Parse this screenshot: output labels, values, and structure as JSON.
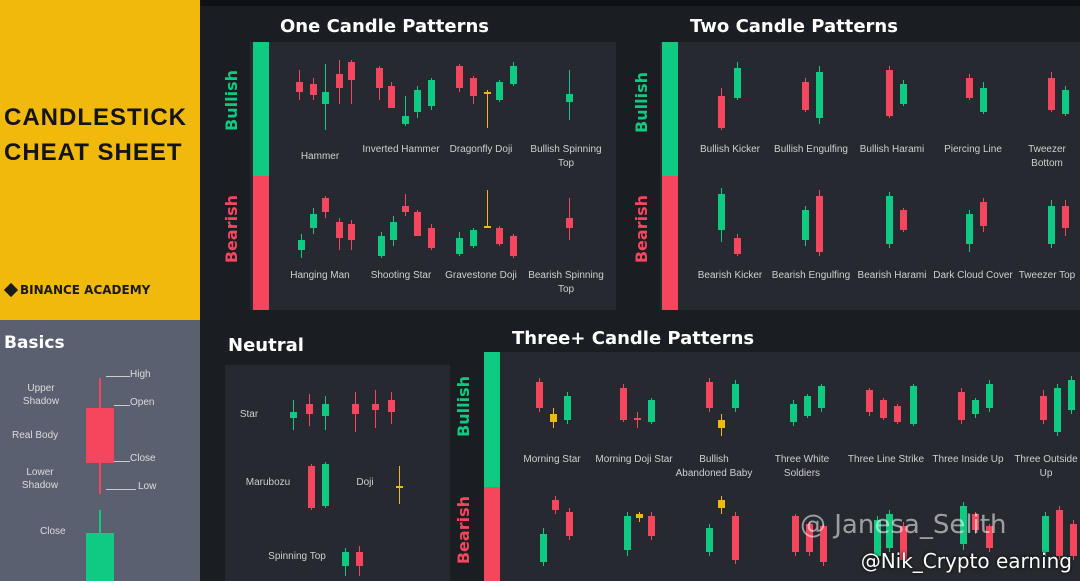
{
  "hero": {
    "title_line1": "CANDLESTICK",
    "title_line2": "CHEAT SHEET",
    "brand": "BINANCE ACADEMY"
  },
  "basics": {
    "title": "Basics",
    "upper_shadow": "Upper Shadow",
    "real_body": "Real Body",
    "lower_shadow": "Lower Shadow",
    "high": "High",
    "open": "Open",
    "close_top": "Close",
    "low": "Low",
    "close_bottom": "Close"
  },
  "one_candle": {
    "title": "One Candle Patterns",
    "bullish": "Bullish",
    "bearish": "Bearish",
    "bullish_items": [
      "Hammer",
      "Inverted Hammer",
      "Dragonfly Doji",
      "Bullish Spinning Top"
    ],
    "bearish_items": [
      "Hanging Man",
      "Shooting Star",
      "Gravestone Doji",
      "Bearish Spinning Top"
    ]
  },
  "two_candle": {
    "title": "Two Candle Patterns",
    "bullish": "Bullish",
    "bearish": "Bearish",
    "bullish_items": [
      "Bullish Kicker",
      "Bullish Engulfing",
      "Bullish Harami",
      "Piercing Line",
      "Tweezer Bottom"
    ],
    "bearish_items": [
      "Bearish Kicker",
      "Bearish Engulfing",
      "Bearish Harami",
      "Dark Cloud Cover",
      "Tweezer Top"
    ]
  },
  "neutral": {
    "title": "Neutral",
    "items": [
      "Star",
      "Marubozu",
      "Doji",
      "Spinning Top"
    ]
  },
  "three_candle": {
    "title": "Three+ Candle Patterns",
    "bullish": "Bullish",
    "bearish": "Bearish",
    "bullish_items": [
      "Morning Star",
      "Morning Doji Star",
      "Bullish Abandoned Baby",
      "Three White Soldiers",
      "Three Line Strike",
      "Three Inside Up",
      "Three Outside Up"
    ]
  },
  "watermark": {
    "line1": "@ Janesa_Selith",
    "line2": "@Nik_Crypto earning"
  },
  "colors": {
    "bull": "#0ecb81",
    "bear": "#f6465d",
    "accent": "#f0b90b"
  }
}
